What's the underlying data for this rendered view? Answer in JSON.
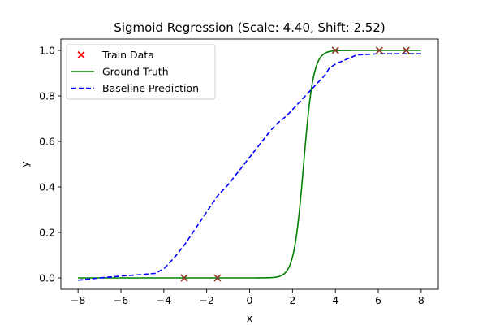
{
  "chart_data": {
    "type": "line",
    "title": "Sigmoid Regression (Scale: 4.40, Shift: 2.52)",
    "xlabel": "x",
    "ylabel": "y",
    "xlim": [
      -8.8,
      8.8
    ],
    "ylim": [
      -0.05,
      1.05
    ],
    "x_ticks": [
      -8,
      -6,
      -4,
      -2,
      0,
      2,
      4,
      6,
      8
    ],
    "x_tick_labels": [
      "−8",
      "−6",
      "−4",
      "−2",
      "0",
      "2",
      "4",
      "6",
      "8"
    ],
    "y_ticks": [
      0.0,
      0.2,
      0.4,
      0.6,
      0.8,
      1.0
    ],
    "y_tick_labels": [
      "0.0",
      "0.2",
      "0.4",
      "0.6",
      "0.8",
      "1.0"
    ],
    "grid": false,
    "legend_position": "top-left",
    "series": [
      {
        "name": "Train Data",
        "kind": "scatter",
        "marker": "x",
        "color": "#ff0000",
        "edge_color": "#8b3a2a",
        "points": [
          [
            -3.05,
            0.0
          ],
          [
            -1.5,
            0.0
          ],
          [
            4.0,
            1.0
          ],
          [
            6.05,
            1.0
          ],
          [
            7.3,
            1.0
          ]
        ]
      },
      {
        "name": "Ground Truth",
        "kind": "line",
        "style": "solid",
        "color": "#008000",
        "function": "sigmoid",
        "scale": 4.4,
        "shift": 2.52,
        "x_range": [
          -8,
          8
        ]
      },
      {
        "name": "Baseline Prediction",
        "kind": "line",
        "style": "dashed",
        "color": "#0000ff",
        "points": [
          [
            -8.0,
            -0.01
          ],
          [
            -7.0,
            0.0
          ],
          [
            -6.0,
            0.008
          ],
          [
            -5.0,
            0.015
          ],
          [
            -4.4,
            0.02
          ],
          [
            -4.0,
            0.04
          ],
          [
            -3.5,
            0.09
          ],
          [
            -3.0,
            0.15
          ],
          [
            -2.5,
            0.22
          ],
          [
            -2.0,
            0.29
          ],
          [
            -1.5,
            0.36
          ],
          [
            -1.0,
            0.41
          ],
          [
            -0.5,
            0.47
          ],
          [
            0.0,
            0.53
          ],
          [
            0.5,
            0.59
          ],
          [
            1.0,
            0.65
          ],
          [
            1.3,
            0.68
          ],
          [
            1.7,
            0.71
          ],
          [
            2.0,
            0.74
          ],
          [
            2.5,
            0.79
          ],
          [
            3.0,
            0.84
          ],
          [
            3.5,
            0.89
          ],
          [
            3.7,
            0.92
          ],
          [
            4.0,
            0.94
          ],
          [
            4.5,
            0.96
          ],
          [
            5.0,
            0.98
          ],
          [
            6.0,
            0.985
          ],
          [
            7.0,
            0.985
          ],
          [
            8.0,
            0.985
          ]
        ]
      }
    ]
  }
}
